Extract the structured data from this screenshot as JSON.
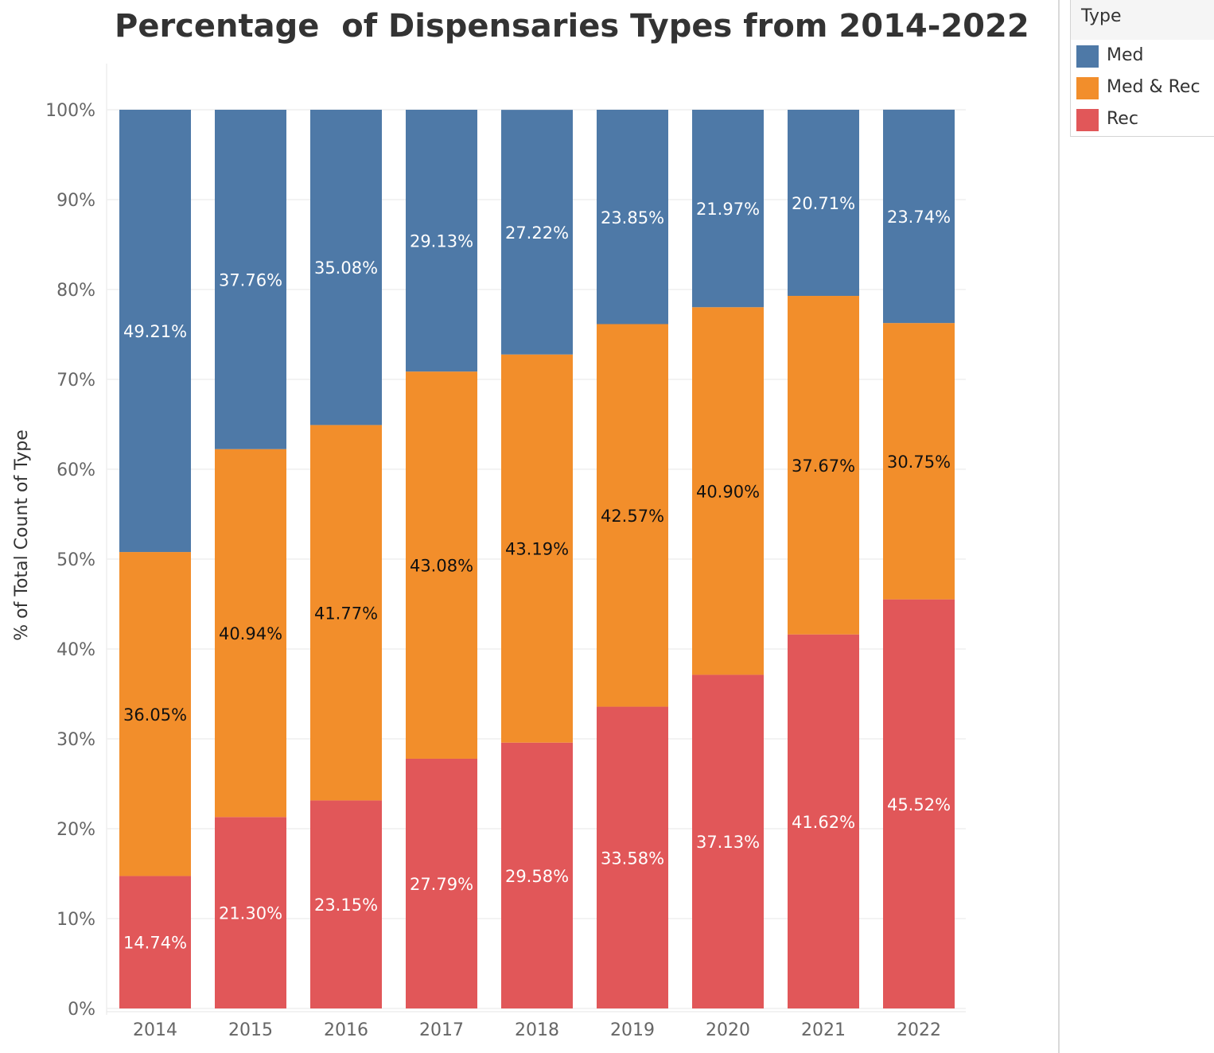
{
  "chart_data": {
    "type": "bar",
    "stacked": true,
    "title": "Percentage  of Dispensaries Types from 2014-2022",
    "xlabel": "",
    "ylabel": "% of Total Count of Type",
    "ylim": [
      0,
      100
    ],
    "y_ticks": [
      "0%",
      "10%",
      "20%",
      "30%",
      "40%",
      "50%",
      "60%",
      "70%",
      "80%",
      "90%",
      "100%"
    ],
    "categories": [
      "2014",
      "2015",
      "2016",
      "2017",
      "2018",
      "2019",
      "2020",
      "2021",
      "2022"
    ],
    "series": [
      {
        "name": "Rec",
        "color": "#e15759",
        "label_color": "#ffffff",
        "values": [
          14.74,
          21.3,
          23.15,
          27.79,
          29.58,
          33.58,
          37.13,
          41.62,
          45.52
        ],
        "labels": [
          "14.74%",
          "21.30%",
          "23.15%",
          "27.79%",
          "29.58%",
          "33.58%",
          "37.13%",
          "41.62%",
          "45.52%"
        ]
      },
      {
        "name": "Med & Rec",
        "color": "#f28e2b",
        "label_color": "#111111",
        "values": [
          36.05,
          40.94,
          41.77,
          43.08,
          43.19,
          42.57,
          40.9,
          37.67,
          30.75
        ],
        "labels": [
          "36.05%",
          "40.94%",
          "41.77%",
          "43.08%",
          "43.19%",
          "42.57%",
          "40.90%",
          "37.67%",
          "30.75%"
        ]
      },
      {
        "name": "Med",
        "color": "#4e79a7",
        "label_color": "#ffffff",
        "values": [
          49.21,
          37.76,
          35.08,
          29.13,
          27.22,
          23.85,
          21.97,
          20.71,
          23.74
        ],
        "labels": [
          "49.21%",
          "37.76%",
          "35.08%",
          "29.13%",
          "27.22%",
          "23.85%",
          "21.97%",
          "20.71%",
          "23.74%"
        ]
      }
    ],
    "grid": true,
    "legend_position": "top-right"
  },
  "legend": {
    "title": "Type",
    "items": [
      {
        "label": "Med",
        "color": "#4e79a7"
      },
      {
        "label": "Med & Rec",
        "color": "#f28e2b"
      },
      {
        "label": "Rec",
        "color": "#e15759"
      }
    ]
  }
}
